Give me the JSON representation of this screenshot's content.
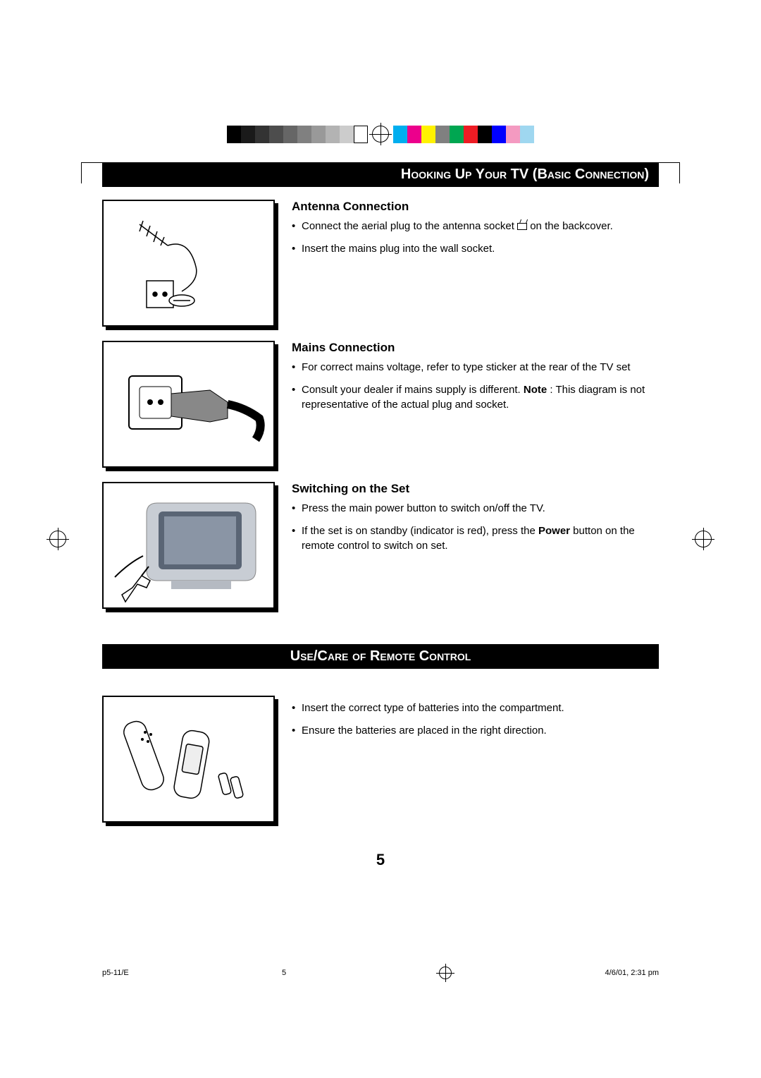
{
  "colorBar": {
    "grays": [
      "#000000",
      "#1a1a1a",
      "#333333",
      "#4d4d4d",
      "#666666",
      "#808080",
      "#999999",
      "#b3b3b3",
      "#cccccc",
      "#ffffff"
    ],
    "colors": [
      "#00aeef",
      "#ec008c",
      "#fff200",
      "#808080",
      "#00a651",
      "#ed1c24",
      "#000000",
      "#0000ff",
      "#f49ac1",
      "#9fd7f0"
    ]
  },
  "header1": "Hooking Up Your TV (Basic Connection)",
  "antenna": {
    "title": "Antenna Connection",
    "b1a": "Connect the aerial plug to the antenna socket ",
    "b1b": " on the backcover.",
    "b2": "Insert the mains plug into the wall socket."
  },
  "mains": {
    "title": "Mains Connection",
    "b1": "For correct mains voltage, refer to type sticker at the rear of the TV set",
    "b2a": "Consult your dealer if mains supply is different. ",
    "b2note": "Note",
    "b2b": " : This diagram is not representative of the actual plug and socket."
  },
  "switching": {
    "title": "Switching on the Set",
    "b1": "Press the main power button to switch on/off the TV.",
    "b2a": "If the set is on standby (indicator is red), press the ",
    "b2bold": "Power",
    "b2b": " button on the remote control to switch on set."
  },
  "header2": "Use/Care of Remote Control",
  "remote": {
    "b1": "Insert the correct type of batteries into the compartment.",
    "b2": "Ensure the batteries are placed in the right direction."
  },
  "pageNum": "5",
  "footer": {
    "left": "p5-11/E",
    "mid": "5",
    "right": "4/6/01, 2:31 pm"
  }
}
